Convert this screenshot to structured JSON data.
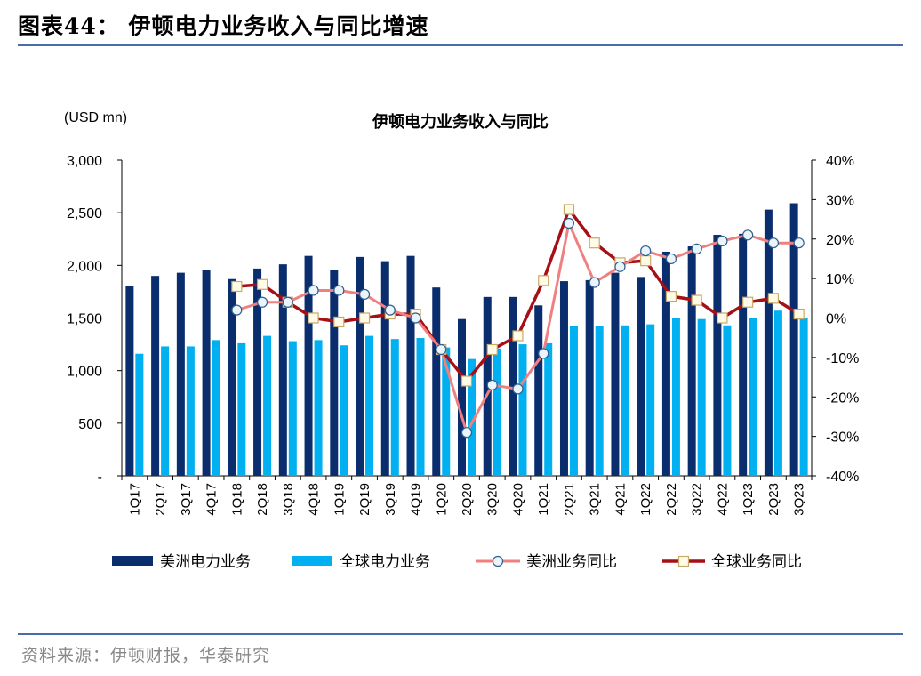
{
  "header": {
    "figure_title": "图表44：  伊顿电力业务收入与同比增速",
    "source": "资料来源：伊顿财报，华泰研究"
  },
  "colors": {
    "americas_bar": "#0a2d6e",
    "global_bar": "#00b0f0",
    "americas_line": "#f08080",
    "global_line": "#a50f15",
    "rule": "#4a6da7"
  },
  "chart_data": {
    "type": "bar",
    "title": "伊顿电力业务收入与同比",
    "unit_label": "(USD mn)",
    "categories": [
      "1Q17",
      "2Q17",
      "3Q17",
      "4Q17",
      "1Q18",
      "2Q18",
      "3Q18",
      "4Q18",
      "1Q19",
      "2Q19",
      "3Q19",
      "4Q19",
      "1Q20",
      "2Q20",
      "3Q20",
      "4Q20",
      "1Q21",
      "2Q21",
      "3Q21",
      "4Q21",
      "1Q22",
      "2Q22",
      "3Q22",
      "4Q22",
      "1Q23",
      "2Q23",
      "3Q23"
    ],
    "ylim_left": [
      0,
      3000
    ],
    "ylim_right": [
      -40,
      40
    ],
    "left_ticks": [
      "-",
      "500",
      "1,000",
      "1,500",
      "2,000",
      "2,500",
      "3,000"
    ],
    "right_ticks": [
      "-40%",
      "-30%",
      "-20%",
      "-10%",
      "0%",
      "10%",
      "20%",
      "30%",
      "40%"
    ],
    "series": [
      {
        "name": "美洲电力业务",
        "kind": "bar",
        "axis": "left",
        "values": [
          1800,
          1900,
          1930,
          1960,
          1870,
          1970,
          2010,
          2090,
          1960,
          2080,
          2040,
          2090,
          1790,
          1490,
          1700,
          1700,
          1620,
          1850,
          1860,
          1930,
          1890,
          2130,
          2180,
          2290,
          2300,
          2530,
          2590
        ]
      },
      {
        "name": "全球电力业务",
        "kind": "bar",
        "axis": "left",
        "values": [
          1160,
          1230,
          1230,
          1290,
          1260,
          1330,
          1280,
          1290,
          1240,
          1330,
          1300,
          1310,
          1220,
          1110,
          1210,
          1250,
          1260,
          1420,
          1420,
          1430,
          1440,
          1500,
          1490,
          1430,
          1500,
          1570,
          1500
        ]
      },
      {
        "name": "美洲业务同比",
        "kind": "line",
        "axis": "right",
        "values": [
          null,
          null,
          null,
          null,
          2,
          4,
          4,
          7,
          7,
          6,
          2,
          0,
          -8,
          -29,
          -17,
          -18,
          -9,
          24,
          9,
          13,
          17,
          15,
          17.5,
          19.5,
          21,
          19,
          19
        ]
      },
      {
        "name": "全球业务同比",
        "kind": "line",
        "axis": "right",
        "values": [
          null,
          null,
          null,
          null,
          8,
          8.5,
          4,
          0,
          -1,
          0,
          1,
          1,
          -8,
          -16,
          -8,
          -4.5,
          9.5,
          27.5,
          19,
          14,
          14.5,
          5.5,
          4.5,
          0,
          4,
          5,
          1
        ]
      }
    ],
    "legend_position": "bottom",
    "grid": false
  }
}
